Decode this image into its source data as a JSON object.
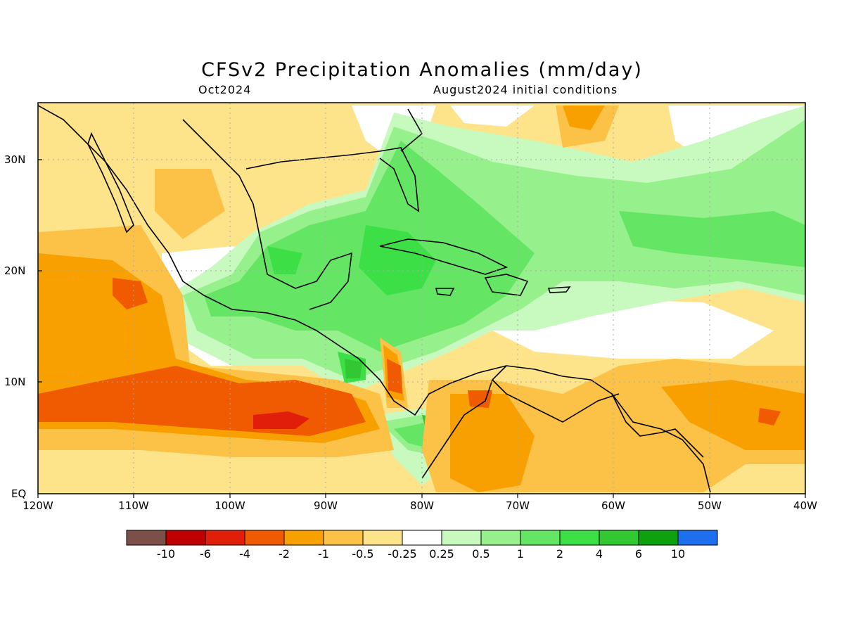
{
  "title": "CFSv2 Precipitation Anomalies (mm/day)",
  "valid_month": "Oct2024",
  "initial_conditions": "August2024 initial conditions",
  "lat_labels": [
    "30N",
    "20N",
    "10N",
    "EQ"
  ],
  "lon_labels": [
    "120W",
    "110W",
    "100W",
    "90W",
    "80W",
    "70W",
    "60W",
    "50W",
    "40W"
  ],
  "colorbar": {
    "colors": [
      "#7a5048",
      "#c00000",
      "#e01e0a",
      "#f05a00",
      "#f7a000",
      "#fcc247",
      "#fde48a",
      "#ffffff",
      "#c8fac0",
      "#96f08c",
      "#64e664",
      "#3ce046",
      "#32c832",
      "#0fa00f",
      "#1e6ef0"
    ],
    "tick_labels": [
      "-10",
      "-6",
      "-4",
      "-2",
      "-1",
      "-0.5",
      "-0.25",
      "0.25",
      "0.5",
      "1",
      "2",
      "4",
      "6",
      "10"
    ]
  }
}
